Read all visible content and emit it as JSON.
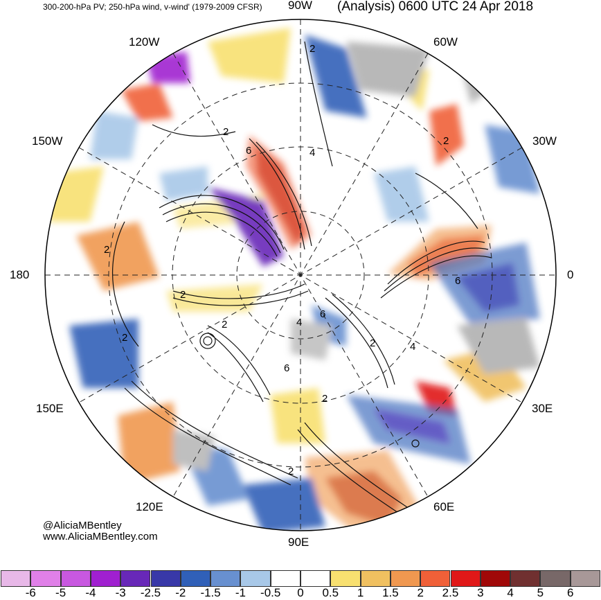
{
  "header": {
    "left": "300-200-hPa PV; 250-hPa wind, v-wind' (1979-2009 CFSR)",
    "right": "(Analysis) 0600 UTC 24 Apr 2018"
  },
  "longitude_labels": {
    "top": "90W",
    "top_left": "120W",
    "top_right": "60W",
    "upper_left": "150W",
    "upper_right": "30W",
    "left": "180",
    "right": "0",
    "lower_left": "150E",
    "lower_right": "30E",
    "bottom_left": "120E",
    "bottom_right": "60E",
    "bottom": "90E"
  },
  "contour_labels": [
    "2",
    "2",
    "6",
    "4",
    "2",
    "2",
    "6",
    "4",
    "6",
    "2",
    "4",
    "6",
    "2",
    "2",
    "2",
    "2",
    "2"
  ],
  "credit": {
    "handle": "@AliciaMBentley",
    "site": "www.AliciaMBentley.com"
  },
  "colorbar": {
    "colors": [
      "#e8b8e8",
      "#e080e8",
      "#c858e0",
      "#a020d0",
      "#6828b8",
      "#3838a8",
      "#3060b8",
      "#6890d0",
      "#a8c8e8",
      "#ffffff",
      "#ffffff",
      "#f8e070",
      "#f0c060",
      "#f09850",
      "#f06038",
      "#e01818",
      "#a00808",
      "#703030",
      "#786868",
      "#a89898"
    ],
    "ticks": [
      "-6",
      "-5",
      "-4",
      "-3",
      "-2.5",
      "-2",
      "-1.5",
      "-1",
      "-0.5",
      "0",
      "0.5",
      "1",
      "1.5",
      "2",
      "2.5",
      "3",
      "4",
      "5",
      "6"
    ]
  }
}
